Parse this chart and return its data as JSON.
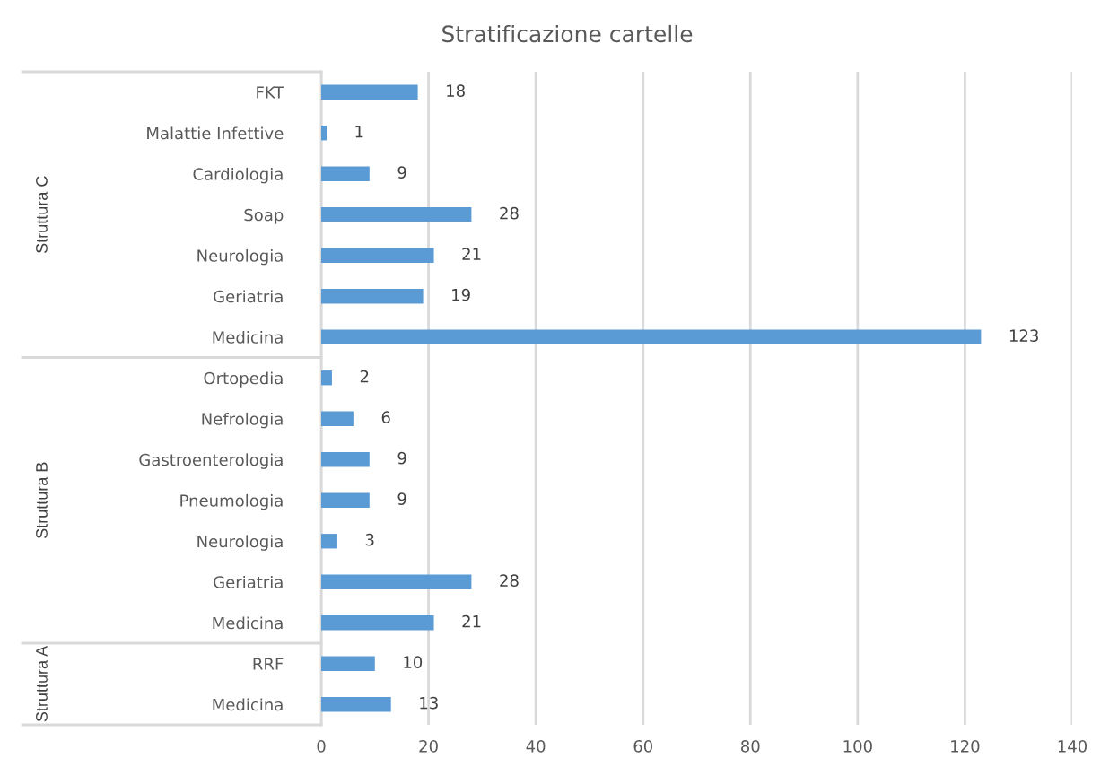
{
  "chart_data": {
    "type": "bar",
    "orientation": "horizontal",
    "title": "Stratificazione cartelle",
    "categories": [
      "FKT",
      "Malattie Infettive",
      "Cardiologia",
      "Soap",
      "Neurologia",
      "Geriatria",
      "Medicina",
      "Ortopedia",
      "Nefrologia",
      "Gastroenterologia",
      "Pneumologia",
      "Neurologia",
      "Geriatria",
      "Medicina",
      "RRF",
      "Medicina"
    ],
    "values": [
      18,
      1,
      9,
      28,
      21,
      19,
      123,
      2,
      6,
      9,
      9,
      3,
      28,
      21,
      10,
      13
    ],
    "color": "#5b9bd5",
    "xlim": [
      0,
      140
    ],
    "xticks": [
      0,
      20,
      40,
      60,
      80,
      100,
      120,
      140
    ],
    "grid": "x",
    "data_labels": true,
    "annotations": [
      "Struttura C",
      "Struttura B",
      "Struttura A"
    ]
  }
}
